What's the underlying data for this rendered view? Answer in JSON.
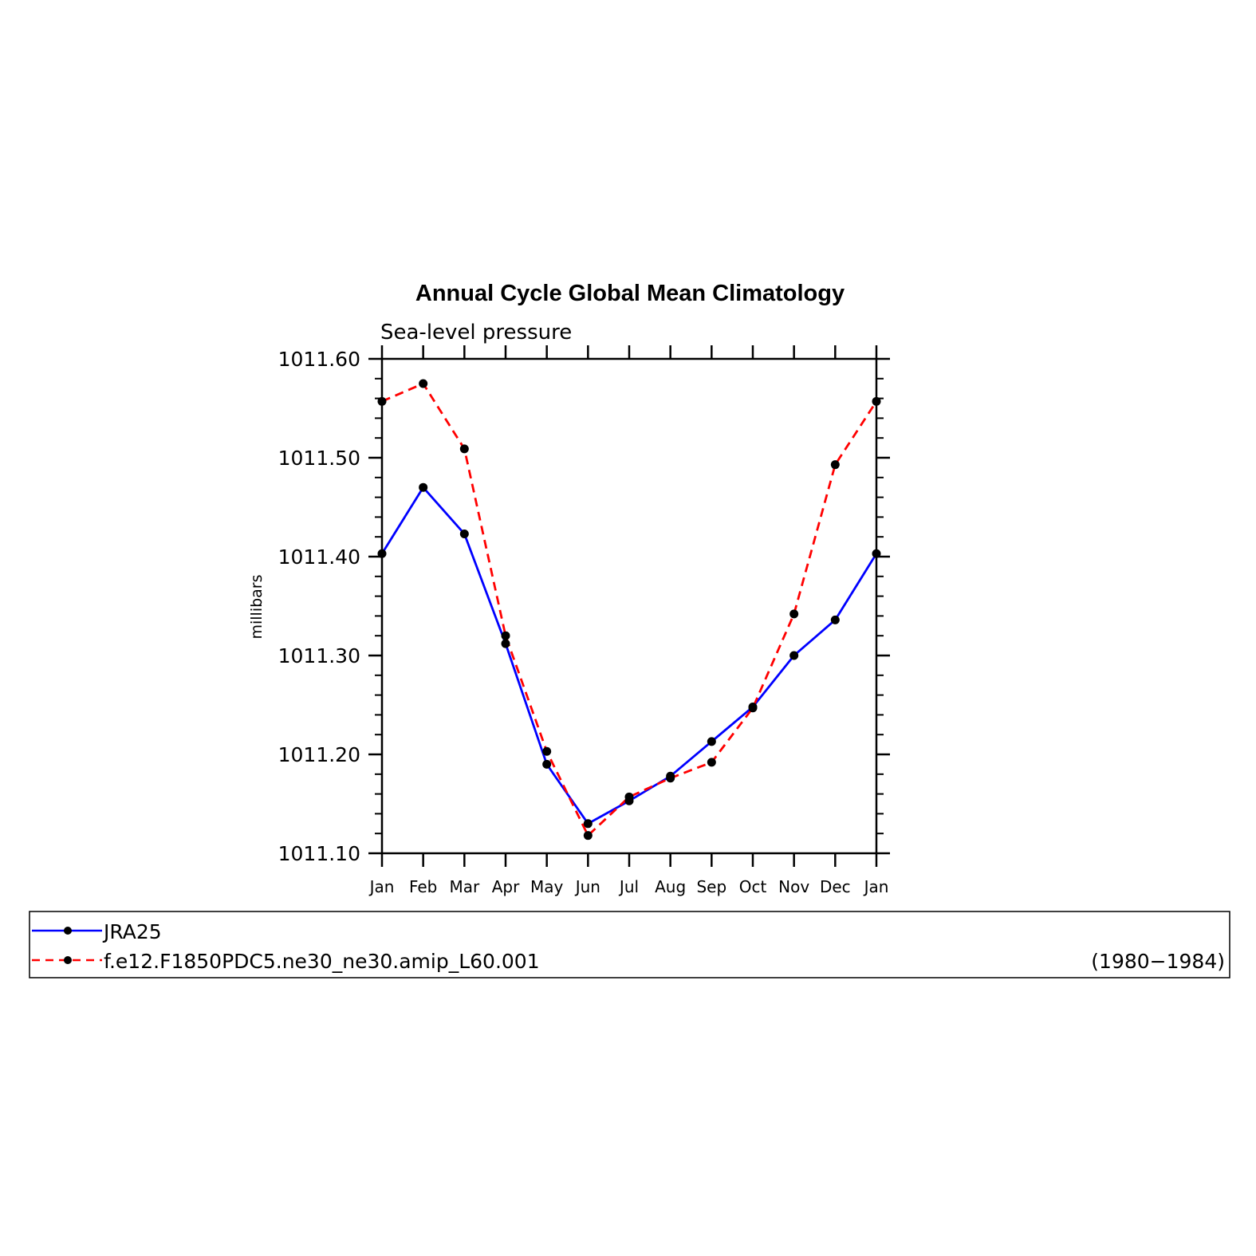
{
  "chart_data": {
    "type": "line",
    "title": "Annual Cycle Global Mean Climatology",
    "subtitle": "Sea-level pressure",
    "xlabel": "",
    "ylabel": "millibars",
    "categories": [
      "Jan",
      "Feb",
      "Mar",
      "Apr",
      "May",
      "Jun",
      "Jul",
      "Aug",
      "Sep",
      "Oct",
      "Nov",
      "Dec",
      "Jan"
    ],
    "ylim": [
      1011.1,
      1011.6
    ],
    "yticks": [
      "1011.10",
      "1011.20",
      "1011.30",
      "1011.40",
      "1011.50",
      "1011.60"
    ],
    "grid": false,
    "legend_position": "bottom",
    "series": [
      {
        "name": "JRA25",
        "color": "#0000ff",
        "line_style": "solid",
        "marker": "filled-circle",
        "values": [
          1011.403,
          1011.47,
          1011.423,
          1011.312,
          1011.19,
          1011.13,
          1011.153,
          1011.178,
          1011.213,
          1011.248,
          1011.3,
          1011.336,
          1011.403
        ]
      },
      {
        "name": "f.e12.F1850PDC5.ne30_ne30.amip_L60.001",
        "color": "#ff0000",
        "line_style": "dashed",
        "marker": "filled-circle",
        "values": [
          1011.557,
          1011.575,
          1011.509,
          1011.32,
          1011.203,
          1011.118,
          1011.157,
          1011.176,
          1011.192,
          1011.247,
          1011.342,
          1011.493,
          1011.557
        ]
      }
    ],
    "legend_note": "(1980−1984)"
  }
}
